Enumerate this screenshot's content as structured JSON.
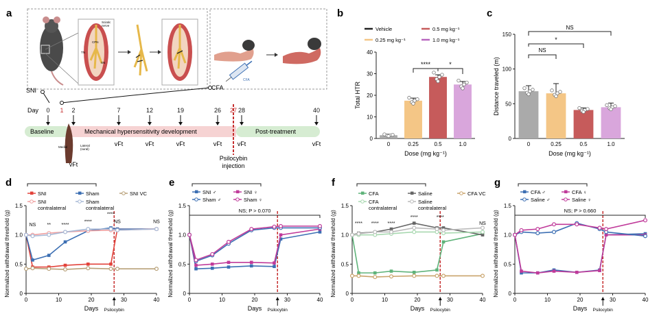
{
  "panel_a": {
    "label": "a",
    "sni": "SNI",
    "cfa": "CFA",
    "day_label": "Day",
    "days": [
      "0",
      "1",
      "2",
      "7",
      "12",
      "19",
      "26",
      "27",
      "28",
      "40"
    ],
    "phases": {
      "baseline": "Baseline",
      "mech": "Mechanical hypersensitivity development",
      "post": "Post-treatment"
    },
    "vft": "vFt",
    "psilocybin": [
      "Psilocybin",
      "injection"
    ],
    "inset": {
      "sciatic": "Sciatic",
      "nerve": "nerve",
      "cpn": "CPN",
      "tn": "TN",
      "sn": "SN",
      "cfa_syringe": "CFA",
      "medial": "Medial",
      "lateral": "Lateral",
      "sural": "(sural)"
    }
  },
  "panel_b": {
    "label": "b",
    "legend": [
      {
        "name": "Vehicle",
        "color": "#222222"
      },
      {
        "name": "0.5 mg kg⁻¹",
        "color": "#c65b5b"
      },
      {
        "name": "0.25 mg kg⁻¹",
        "color": "#f4c686"
      },
      {
        "name": "1.0 mg kg⁻¹",
        "color": "#b866bf"
      }
    ],
    "sig": [
      "****",
      "*"
    ],
    "chart_data": {
      "type": "bar",
      "ylabel": "Total HTR",
      "xlabel": "Dose (mg kg⁻¹)",
      "categories": [
        "0",
        "0.25",
        "0.5",
        "1.0"
      ],
      "values": [
        1.5,
        17.5,
        28.5,
        25.0
      ],
      "errors": [
        0.5,
        1.2,
        1.0,
        1.4
      ],
      "colors": [
        "#aaaaaa",
        "#f4c686",
        "#c65b5b",
        "#d9a6dc"
      ],
      "ylim": [
        0,
        40
      ],
      "yticks": [
        "0",
        "10",
        "20",
        "30",
        "40"
      ]
    }
  },
  "panel_c": {
    "label": "c",
    "sig": [
      "NS",
      "NS",
      "*"
    ],
    "chart_data": {
      "type": "bar",
      "ylabel": "Distance traveled (m)",
      "xlabel": "Dose (mg kg⁻¹)",
      "categories": [
        "0",
        "0.25",
        "0.5",
        "1.0"
      ],
      "values": [
        68,
        65,
        41,
        45
      ],
      "errors": [
        8,
        14,
        3,
        6
      ],
      "colors": [
        "#aaaaaa",
        "#f4c686",
        "#c65b5b",
        "#d9a6dc"
      ],
      "ylim": [
        0,
        150
      ],
      "yticks": [
        "0",
        "50",
        "100",
        "150"
      ]
    }
  },
  "panel_d": {
    "label": "d",
    "ylabel": "Normalized withdrawal threshold (g)",
    "xlabel": "Days",
    "psilocybin": "Psilocybin",
    "legend": [
      {
        "name": "SNI",
        "color": "#e2423a",
        "marker": "square"
      },
      {
        "name": "Sham",
        "color": "#3c6fb3",
        "marker": "square"
      },
      {
        "name": "SNI VC",
        "color": "#b8a078",
        "marker": "circle"
      },
      {
        "name": "SNI contralateral",
        "color": "#f0a0a0",
        "marker": "circle"
      },
      {
        "name": "Sham contralateral",
        "color": "#a7b9d6",
        "marker": "circle"
      }
    ],
    "sig": [
      "NS",
      "**",
      "****",
      "****",
      "****",
      "NS",
      "NS"
    ],
    "chart_data": {
      "type": "line",
      "x": [
        0,
        2,
        7,
        12,
        19,
        26,
        28,
        40
      ],
      "xlim": [
        0,
        40
      ],
      "ylim": [
        0,
        1.5
      ],
      "xticks": [
        "0",
        "10",
        "20",
        "30",
        "40"
      ],
      "yticks": [
        "0",
        "0.5",
        "1.0",
        "1.5"
      ],
      "series": [
        {
          "name": "SNI",
          "values": [
            1.0,
            0.45,
            0.45,
            0.48,
            0.5,
            0.5,
            1.1,
            1.1
          ]
        },
        {
          "name": "Sham",
          "values": [
            1.0,
            0.57,
            0.65,
            0.88,
            1.07,
            1.12,
            1.1,
            1.1
          ]
        },
        {
          "name": "SNI contralateral",
          "values": [
            1.0,
            1.0,
            1.03,
            1.05,
            1.07,
            1.08,
            1.08,
            1.1
          ]
        },
        {
          "name": "Sham contralateral",
          "values": [
            1.0,
            0.98,
            1.0,
            1.05,
            1.1,
            1.1,
            1.08,
            1.1
          ]
        },
        {
          "name": "SNI VC",
          "values": [
            0.42,
            0.43,
            0.42,
            0.41,
            0.43,
            0.42,
            0.42,
            0.42
          ]
        }
      ]
    }
  },
  "panel_e": {
    "label": "e",
    "ylabel": "Normalized withdrawal threshold (g)",
    "xlabel": "Days",
    "psilocybin": "Psilocybin",
    "legend": [
      {
        "name": "SNI ♂",
        "color": "#3c6fb3",
        "marker": "square"
      },
      {
        "name": "SNI ♀",
        "color": "#c03a9a",
        "marker": "square"
      },
      {
        "name": "Sham ♂",
        "color": "#3c6fb3",
        "marker": "circle"
      },
      {
        "name": "Sham ♀",
        "color": "#c03a9a",
        "marker": "circle"
      }
    ],
    "sig": [
      "NS; P > 0.070"
    ],
    "chart_data": {
      "type": "line",
      "x": [
        0,
        2,
        7,
        12,
        19,
        26,
        28,
        40
      ],
      "xlim": [
        0,
        40
      ],
      "ylim": [
        0,
        1.5
      ],
      "xticks": [
        "0",
        "10",
        "20",
        "30",
        "40"
      ],
      "yticks": [
        "0",
        "0.5",
        "1.0",
        "1.5"
      ],
      "series": [
        {
          "name": "SNI ♂",
          "values": [
            1.0,
            0.42,
            0.43,
            0.45,
            0.47,
            0.46,
            0.93,
            1.05
          ]
        },
        {
          "name": "SNI ♀",
          "values": [
            1.0,
            0.48,
            0.5,
            0.53,
            0.53,
            0.52,
            1.0,
            1.1
          ]
        },
        {
          "name": "Sham ♂",
          "values": [
            1.0,
            0.55,
            0.65,
            0.85,
            1.08,
            1.12,
            1.12,
            1.12
          ]
        },
        {
          "name": "Sham ♀",
          "values": [
            1.0,
            0.57,
            0.67,
            0.88,
            1.1,
            1.14,
            1.15,
            1.15
          ]
        }
      ]
    }
  },
  "panel_f": {
    "label": "f",
    "ylabel": "Normalized withdrawal threshold (g)",
    "xlabel": "Days",
    "psilocybin": "Psilocybin",
    "legend": [
      {
        "name": "CFA",
        "color": "#5fb37a",
        "marker": "square"
      },
      {
        "name": "Saline",
        "color": "#666666",
        "marker": "square"
      },
      {
        "name": "CFA VC",
        "color": "#c9a36a",
        "marker": "circle"
      },
      {
        "name": "CFA contralateral",
        "color": "#a8d8b0",
        "marker": "circle"
      },
      {
        "name": "Saline contralateral",
        "color": "#bbbbbb",
        "marker": "circle"
      }
    ],
    "sig": [
      "****",
      "****",
      "****",
      "****",
      "****",
      "NS"
    ],
    "chart_data": {
      "type": "line",
      "x": [
        0,
        2,
        7,
        12,
        19,
        26,
        28,
        40
      ],
      "xlim": [
        0,
        40
      ],
      "ylim": [
        0,
        1.5
      ],
      "xticks": [
        "0",
        "10",
        "20",
        "30",
        "40"
      ],
      "yticks": [
        "0",
        "0.5",
        "1.0",
        "1.5"
      ],
      "series": [
        {
          "name": "CFA",
          "values": [
            1.0,
            0.35,
            0.35,
            0.38,
            0.36,
            0.4,
            0.88,
            1.02
          ]
        },
        {
          "name": "Saline",
          "values": [
            1.0,
            1.03,
            1.05,
            1.1,
            1.2,
            1.12,
            1.12,
            1.0
          ]
        },
        {
          "name": "CFA contralateral",
          "values": [
            1.0,
            1.0,
            1.0,
            1.02,
            1.05,
            1.05,
            1.03,
            1.05
          ]
        },
        {
          "name": "Saline contralateral",
          "values": [
            1.0,
            1.02,
            1.05,
            1.05,
            1.12,
            1.1,
            1.08,
            1.12
          ]
        },
        {
          "name": "CFA VC",
          "values": [
            0.3,
            0.3,
            0.28,
            0.29,
            0.3,
            0.3,
            0.3,
            0.3
          ]
        }
      ]
    }
  },
  "panel_g": {
    "label": "g",
    "ylabel": "Normalized withdrawal threshold (g)",
    "xlabel": "Days",
    "psilocybin": "Psilocybin",
    "legend": [
      {
        "name": "CFA ♂",
        "color": "#3c6fb3",
        "marker": "square"
      },
      {
        "name": "CFA ♀",
        "color": "#c03a9a",
        "marker": "square"
      },
      {
        "name": "Saline ♂",
        "color": "#3c6fb3",
        "marker": "circle"
      },
      {
        "name": "Saline ♀",
        "color": "#c03a9a",
        "marker": "circle"
      }
    ],
    "sig": [
      "NS; P > 0.660"
    ],
    "chart_data": {
      "type": "line",
      "x": [
        0,
        2,
        7,
        12,
        19,
        26,
        28,
        40
      ],
      "xlim": [
        0,
        40
      ],
      "ylim": [
        0,
        1.5
      ],
      "xticks": [
        "0",
        "10",
        "20",
        "30",
        "40"
      ],
      "yticks": [
        "0",
        "0.5",
        "1.0",
        "1.5"
      ],
      "series": [
        {
          "name": "CFA ♂",
          "values": [
            1.0,
            0.35,
            0.35,
            0.4,
            0.36,
            0.4,
            1.0,
            1.02
          ]
        },
        {
          "name": "CFA ♀",
          "values": [
            1.0,
            0.38,
            0.35,
            0.38,
            0.36,
            0.39,
            1.0,
            1.0
          ]
        },
        {
          "name": "Saline ♂",
          "values": [
            1.0,
            1.05,
            1.03,
            1.05,
            1.2,
            1.1,
            1.05,
            0.98
          ]
        },
        {
          "name": "Saline ♀",
          "values": [
            1.0,
            1.08,
            1.1,
            1.18,
            1.18,
            1.12,
            1.1,
            1.25
          ]
        }
      ]
    }
  }
}
